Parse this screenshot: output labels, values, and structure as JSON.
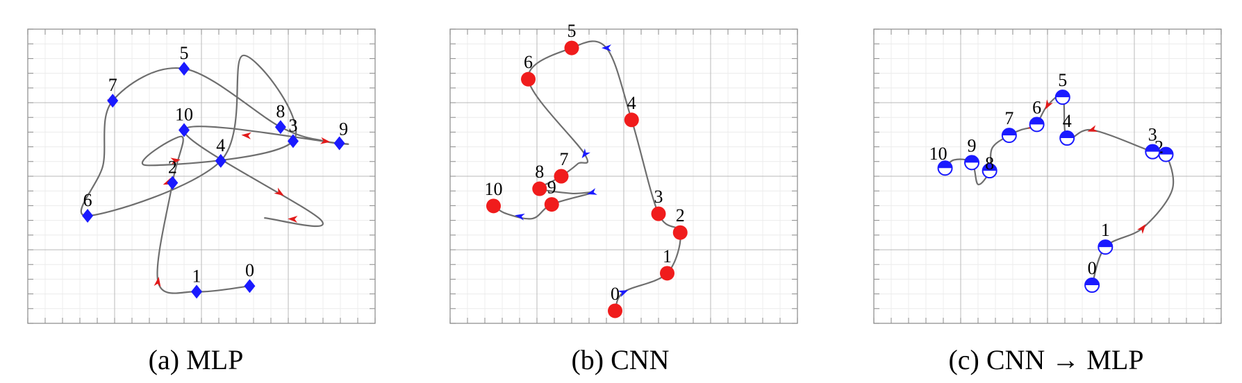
{
  "figure": {
    "panels": [
      {
        "caption": "(a) MLP",
        "marker": "diamond",
        "marker_color": "#1a1aff",
        "path": [
          [
            1,
            33.5
          ],
          [
            -4.5,
            32.2
          ],
          [
            -8.5,
            34.5
          ],
          [
            -7,
            57
          ],
          [
            -6,
            67.5
          ],
          [
            -9.7,
            61
          ],
          [
            5.5,
            66.5
          ],
          [
            0.3,
            86
          ],
          [
            -2,
            62
          ],
          [
            -15.8,
            49.5
          ],
          [
            -14.2,
            61
          ],
          [
            -13.2,
            75.7
          ],
          [
            -5.8,
            83
          ],
          [
            4.2,
            69.7
          ],
          [
            8.7,
            66.5
          ],
          [
            10.3,
            66
          ],
          [
            -5.8,
            69
          ],
          [
            8.4,
            48.5
          ],
          [
            2.5,
            49
          ]
        ],
        "arrows": [
          [
            2.0,
            "#e21a1a"
          ],
          [
            5.2,
            "#e21a1a"
          ],
          [
            8.4,
            "#e21a1a"
          ],
          [
            11.0,
            "#e21a1a"
          ],
          [
            14.1,
            "#e21a1a"
          ],
          [
            15.6,
            "#e21a1a"
          ],
          [
            16.7,
            "#e21a1a"
          ],
          [
            17.5,
            "#e21a1a"
          ]
        ],
        "points": [
          {
            "label": "0",
            "x": 1,
            "y": 33.5
          },
          {
            "label": "1",
            "x": -4.5,
            "y": 32.2
          },
          {
            "label": "2",
            "x": -7,
            "y": 57
          },
          {
            "label": "3",
            "x": 5.5,
            "y": 66.5
          },
          {
            "label": "4",
            "x": -2,
            "y": 62
          },
          {
            "label": "5",
            "x": -5.8,
            "y": 83
          },
          {
            "label": "6",
            "x": -15.8,
            "y": 49.5
          },
          {
            "label": "7",
            "x": -13.2,
            "y": 75.7
          },
          {
            "label": "8",
            "x": 4.2,
            "y": 69.7
          },
          {
            "label": "9",
            "x": 10.3,
            "y": 66
          },
          {
            "label": "10",
            "x": -5.8,
            "y": 69
          }
        ]
      },
      {
        "caption": "(b) CNN",
        "marker": "circle",
        "marker_color": "#f01c1c",
        "path": [
          [
            -1,
            -10
          ],
          [
            0,
            -4
          ],
          [
            5,
            2
          ],
          [
            6.5,
            15
          ],
          [
            4,
            21
          ],
          [
            0.9,
            51
          ],
          [
            -2,
            74
          ],
          [
            -6,
            74
          ],
          [
            -11,
            64
          ],
          [
            -4.5,
            40
          ],
          [
            -5.3,
            37
          ],
          [
            -7.2,
            33
          ],
          [
            -8.5,
            31
          ],
          [
            -9.7,
            29
          ],
          [
            -6,
            27.5
          ],
          [
            -3.7,
            27.7
          ],
          [
            -8.3,
            24
          ],
          [
            -10.5,
            19.5
          ],
          [
            -13.5,
            21
          ],
          [
            -15,
            23.5
          ]
        ],
        "arrows": [
          [
            1.0,
            "#1a1aff"
          ],
          [
            2.0,
            "#1a1aff"
          ],
          [
            3.0,
            "#1a1aff"
          ],
          [
            5.0,
            "#1a1aff"
          ],
          [
            6.0,
            "#1a1aff"
          ],
          [
            7.0,
            "#1a1aff"
          ],
          [
            9.0,
            "#1a1aff"
          ],
          [
            11.0,
            "#1a1aff"
          ],
          [
            13.0,
            "#1a1aff"
          ],
          [
            15.0,
            "#1a1aff"
          ],
          [
            17.5,
            "#1a1aff"
          ]
        ],
        "points": [
          {
            "label": "0",
            "x": -1,
            "y": -10
          },
          {
            "label": "1",
            "x": 5,
            "y": 2
          },
          {
            "label": "2",
            "x": 6.5,
            "y": 15
          },
          {
            "label": "3",
            "x": 4,
            "y": 21
          },
          {
            "label": "4",
            "x": 0.9,
            "y": 51
          },
          {
            "label": "5",
            "x": -6,
            "y": 74
          },
          {
            "label": "6",
            "x": -11,
            "y": 64
          },
          {
            "label": "7",
            "x": -7.2,
            "y": 33
          },
          {
            "label": "8",
            "x": -9.7,
            "y": 29
          },
          {
            "label": "9",
            "x": -8.3,
            "y": 24
          },
          {
            "label": "10",
            "x": -15,
            "y": 23.5
          }
        ]
      },
      {
        "caption": "(c) CNN → MLP",
        "marker": "halfcircle",
        "marker_color": "#1a1aff",
        "path": [
          [
            -2.5,
            -7
          ],
          [
            -1,
            0
          ],
          [
            3.2,
            3.5
          ],
          [
            6.5,
            10.5
          ],
          [
            5.8,
            17
          ],
          [
            4.3,
            17.5
          ],
          [
            -2.5,
            21.5
          ],
          [
            -5.3,
            20
          ],
          [
            -5.8,
            27.5
          ],
          [
            -7.5,
            26
          ],
          [
            -8.7,
            22.5
          ],
          [
            -9.2,
            22
          ],
          [
            -10.5,
            21.5
          ],
          [
            -11.8,
            20.5
          ],
          [
            -13.7,
            18.2
          ],
          [
            -14,
            14
          ],
          [
            -15.3,
            11.5
          ],
          [
            -16,
            15.5
          ],
          [
            -18,
            16
          ],
          [
            -19,
            14.5
          ]
        ],
        "arrows": [
          [
            1.0,
            "#e21a1a"
          ],
          [
            2.0,
            "#e21a1a"
          ],
          [
            4.0,
            "#e21a1a"
          ],
          [
            6.0,
            "#e21a1a"
          ],
          [
            8.0,
            "#e21a1a"
          ],
          [
            9.0,
            "#e21a1a"
          ],
          [
            11.0,
            "#e21a1a"
          ],
          [
            13.0,
            "#e21a1a"
          ],
          [
            15.0,
            "#e21a1a"
          ],
          [
            17.0,
            "#e21a1a"
          ]
        ],
        "points": [
          {
            "label": "0",
            "x": -2.5,
            "y": -7
          },
          {
            "label": "1",
            "x": -1,
            "y": 0
          },
          {
            "label": "2",
            "x": 5.8,
            "y": 17
          },
          {
            "label": "3",
            "x": 4.3,
            "y": 17.5
          },
          {
            "label": "4",
            "x": -5.3,
            "y": 20
          },
          {
            "label": "5",
            "x": -5.8,
            "y": 27.5
          },
          {
            "label": "6",
            "x": -8.7,
            "y": 22.5
          },
          {
            "label": "7",
            "x": -11.8,
            "y": 20.5
          },
          {
            "label": "8",
            "x": -14,
            "y": 14
          },
          {
            "label": "9",
            "x": -16,
            "y": 15.5
          },
          {
            "label": "10",
            "x": -19,
            "y": 14.5
          }
        ]
      }
    ]
  }
}
